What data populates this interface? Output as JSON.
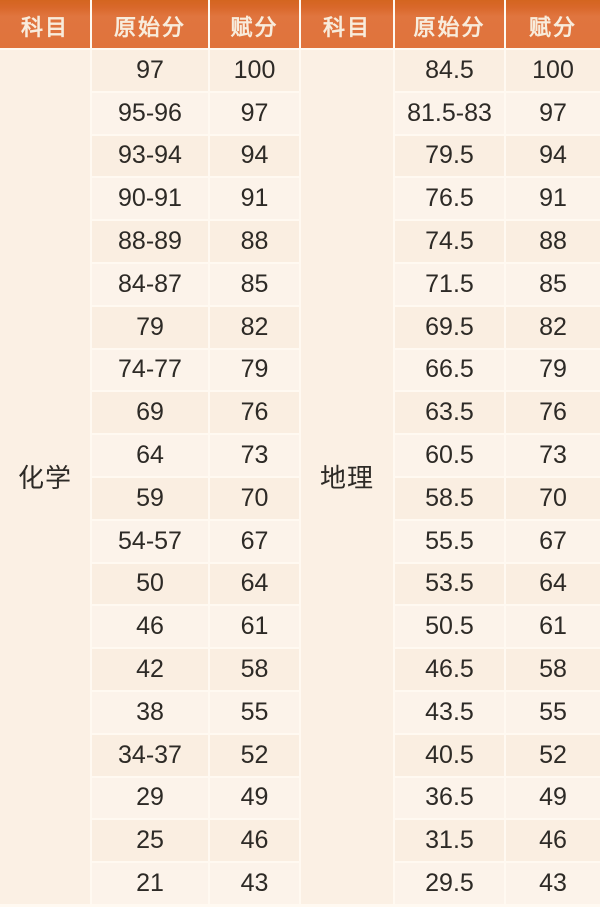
{
  "colors": {
    "header_orange": "#e0733c",
    "header_orange_dark": "#d4651f",
    "header_text": "#f8ecdc",
    "cell_background": "#faeee1",
    "cell_background_alt": "#fcf3ea",
    "border_line": "#fff9f1",
    "body_text": "#2d2a26"
  },
  "headers": [
    "科目",
    "原始分",
    "赋分",
    "科目",
    "原始分",
    "赋分"
  ],
  "chart_data": [
    {
      "type": "table",
      "subject": "化学",
      "columns": [
        "科目",
        "原始分",
        "赋分"
      ],
      "rows": [
        [
          "97",
          "100"
        ],
        [
          "95-96",
          "97"
        ],
        [
          "93-94",
          "94"
        ],
        [
          "90-91",
          "91"
        ],
        [
          "88-89",
          "88"
        ],
        [
          "84-87",
          "85"
        ],
        [
          "79",
          "82"
        ],
        [
          "74-77",
          "79"
        ],
        [
          "69",
          "76"
        ],
        [
          "64",
          "73"
        ],
        [
          "59",
          "70"
        ],
        [
          "54-57",
          "67"
        ],
        [
          "50",
          "64"
        ],
        [
          "46",
          "61"
        ],
        [
          "42",
          "58"
        ],
        [
          "38",
          "55"
        ],
        [
          "34-37",
          "52"
        ],
        [
          "29",
          "49"
        ],
        [
          "25",
          "46"
        ],
        [
          "21",
          "43"
        ]
      ]
    },
    {
      "type": "table",
      "subject": "地理",
      "columns": [
        "科目",
        "原始分",
        "赋分"
      ],
      "rows": [
        [
          "84.5",
          "100"
        ],
        [
          "81.5-83",
          "97"
        ],
        [
          "79.5",
          "94"
        ],
        [
          "76.5",
          "91"
        ],
        [
          "74.5",
          "88"
        ],
        [
          "71.5",
          "85"
        ],
        [
          "69.5",
          "82"
        ],
        [
          "66.5",
          "79"
        ],
        [
          "63.5",
          "76"
        ],
        [
          "60.5",
          "73"
        ],
        [
          "58.5",
          "70"
        ],
        [
          "55.5",
          "67"
        ],
        [
          "53.5",
          "64"
        ],
        [
          "50.5",
          "61"
        ],
        [
          "46.5",
          "58"
        ],
        [
          "43.5",
          "55"
        ],
        [
          "40.5",
          "52"
        ],
        [
          "36.5",
          "49"
        ],
        [
          "31.5",
          "46"
        ],
        [
          "29.5",
          "43"
        ]
      ]
    }
  ]
}
